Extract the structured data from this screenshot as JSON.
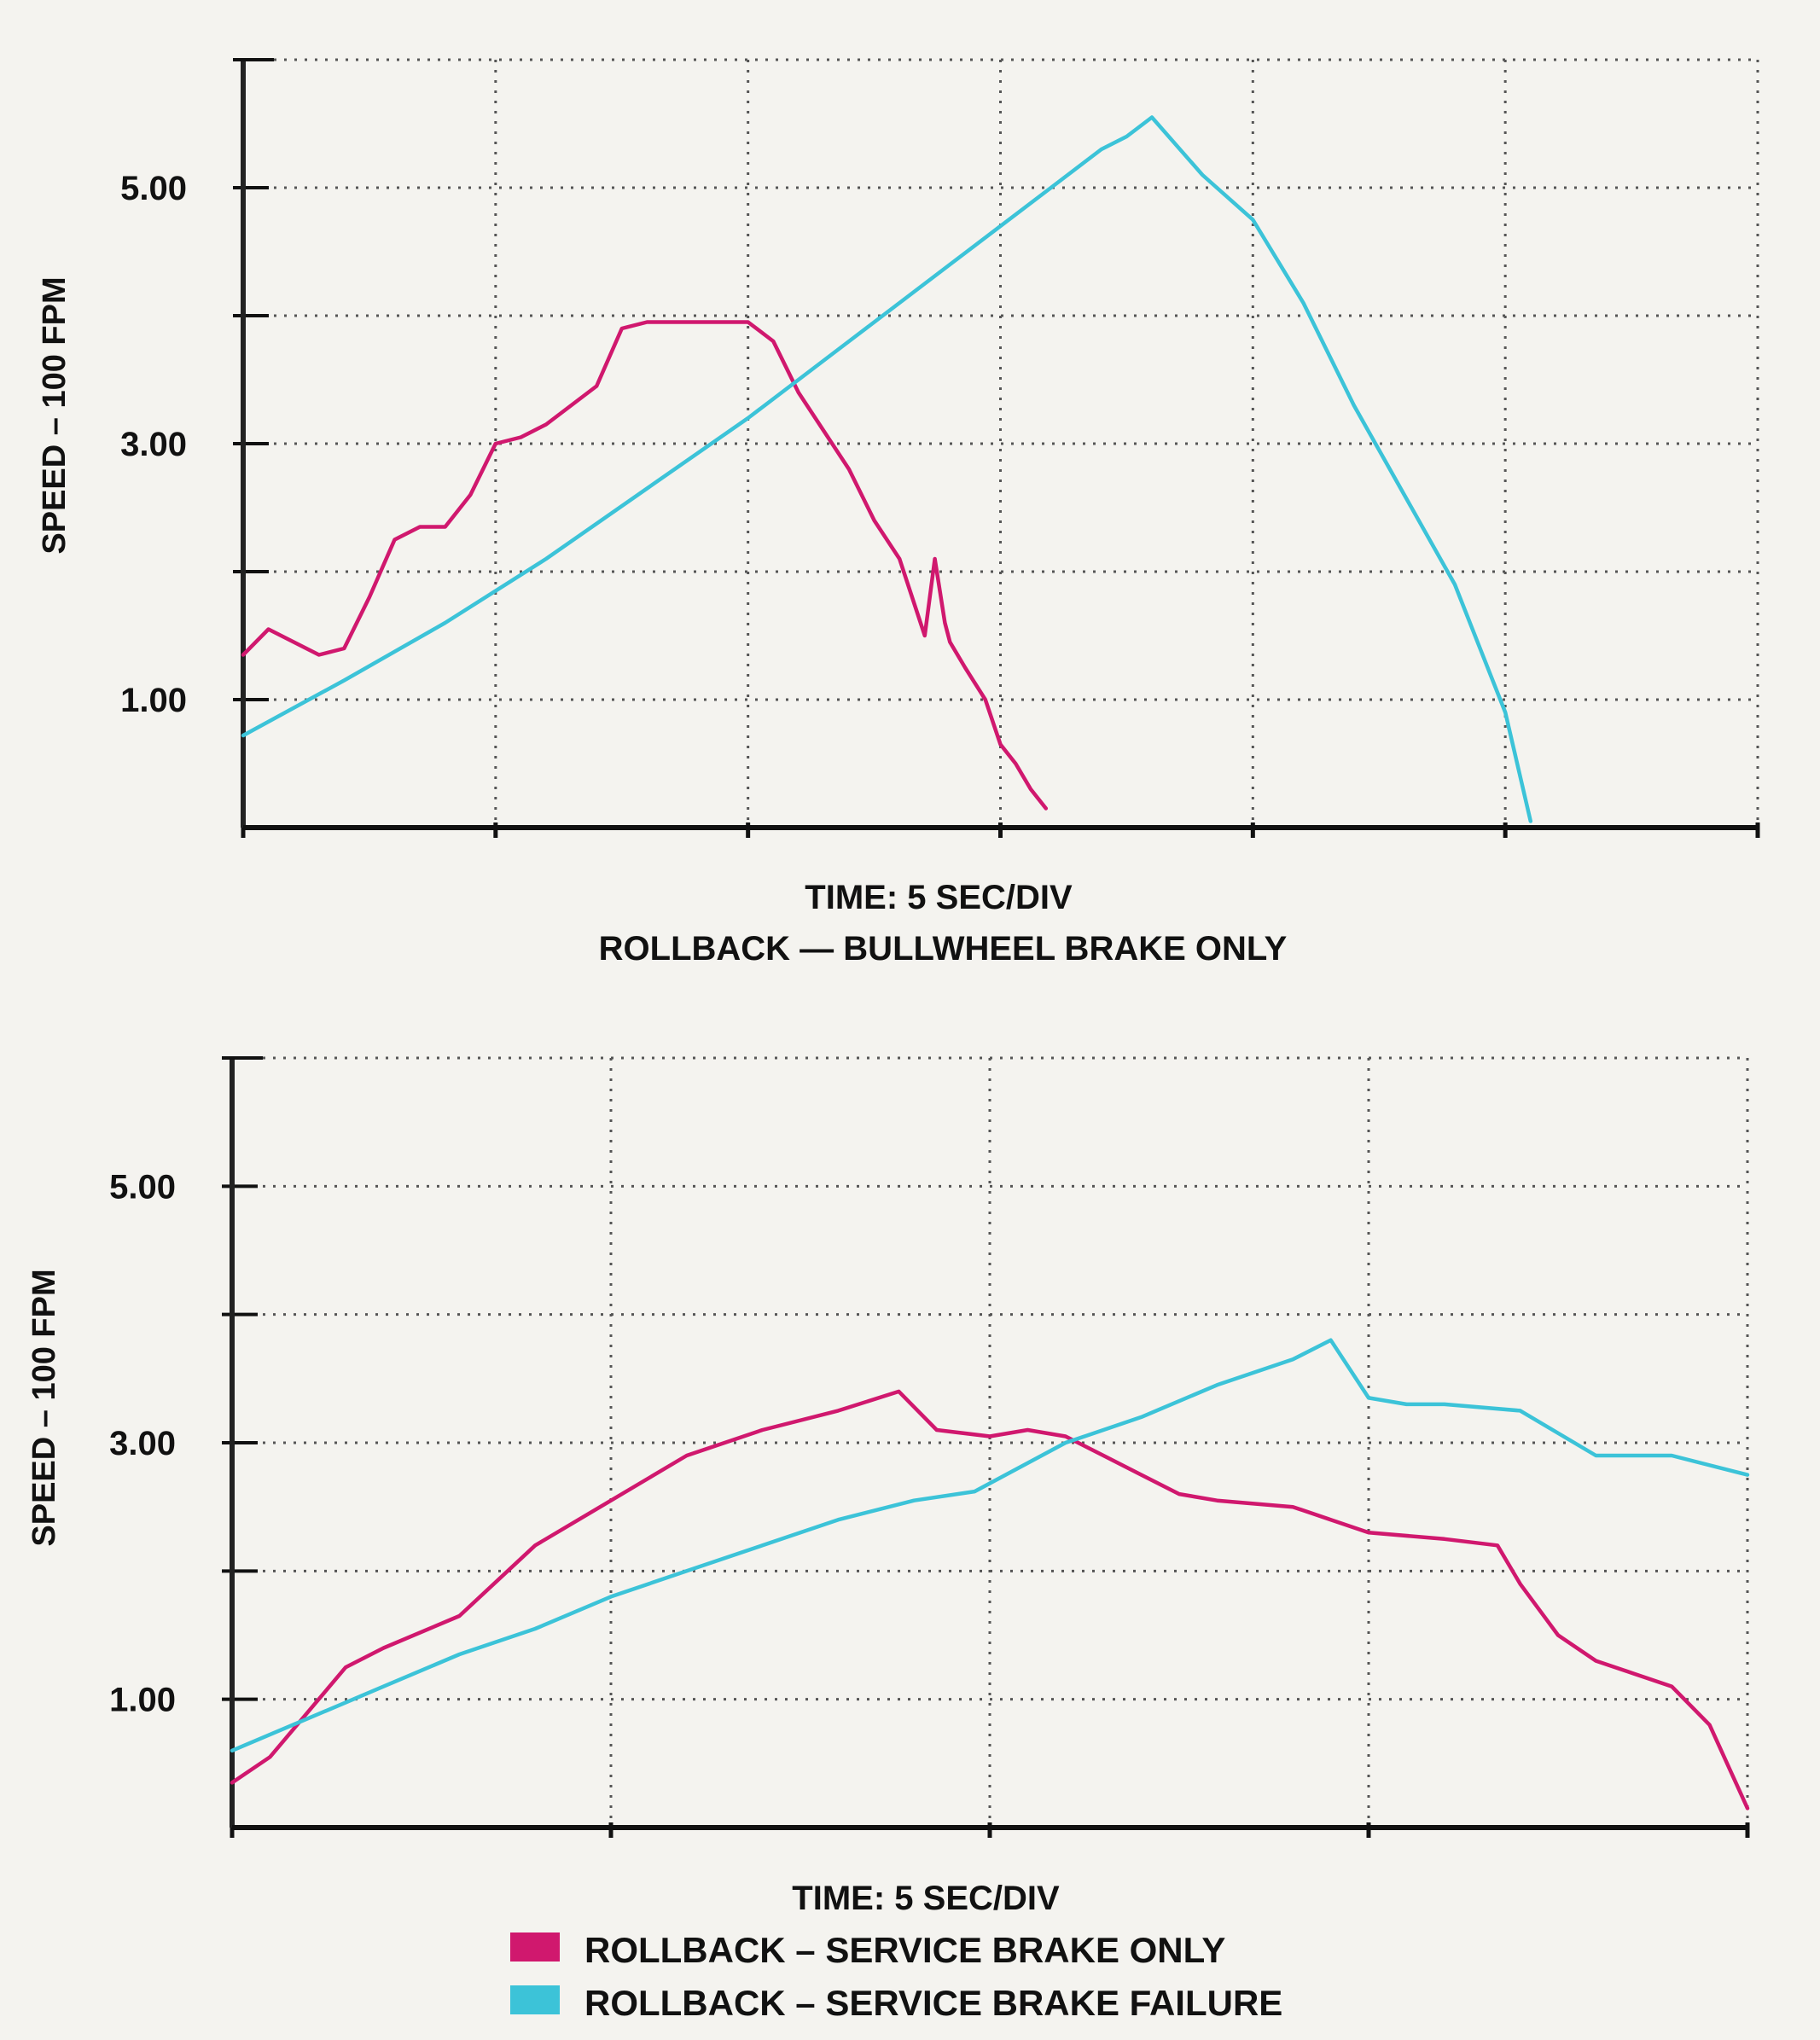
{
  "chart_data": [
    {
      "type": "line",
      "title": "ROLLBACK — BULLWHEEL BRAKE ONLY",
      "xlabel": "TIME: 5 SEC/DIV",
      "ylabel": "SPEED – 100 FPM",
      "xlim": [
        0,
        30
      ],
      "ylim": [
        0,
        6
      ],
      "y_ticks": [
        1,
        2,
        3,
        4,
        5,
        6
      ],
      "y_tick_labels": [
        {
          "value": 1,
          "label": "1.00"
        },
        {
          "value": 3,
          "label": "3.00"
        },
        {
          "value": 5,
          "label": "5.00"
        }
      ],
      "x_ticks": [
        0,
        5,
        10,
        15,
        20,
        25,
        30
      ],
      "grid": "dotted",
      "series": [
        {
          "color": "#d0186e",
          "x": [
            0,
            0.5,
            1.0,
            1.5,
            2.0,
            2.5,
            3.0,
            3.5,
            4.0,
            4.5,
            5.0,
            5.5,
            6.0,
            7.0,
            7.5,
            8.0,
            8.5,
            9.0,
            10.0,
            10.5,
            11.0,
            11.5,
            12.0,
            12.5,
            13.0,
            13.5,
            13.7,
            13.9,
            14.0,
            14.3,
            14.7,
            15.0,
            15.3,
            15.6,
            15.9
          ],
          "values": [
            1.35,
            1.55,
            1.45,
            1.35,
            1.4,
            1.8,
            2.25,
            2.35,
            2.35,
            2.6,
            3.0,
            3.05,
            3.15,
            3.45,
            3.9,
            3.95,
            3.95,
            3.95,
            3.95,
            3.8,
            3.4,
            3.1,
            2.8,
            2.4,
            2.1,
            1.5,
            2.1,
            1.6,
            1.45,
            1.25,
            1.0,
            0.65,
            0.5,
            0.3,
            0.15
          ]
        },
        {
          "color": "#3cc3d8",
          "x": [
            0,
            2,
            4,
            6,
            8,
            10,
            12,
            14,
            16,
            17,
            17.5,
            18,
            19,
            20,
            21,
            22,
            23,
            24,
            25,
            25.5
          ],
          "values": [
            0.72,
            1.15,
            1.6,
            2.1,
            2.65,
            3.2,
            3.8,
            4.4,
            5.0,
            5.3,
            5.4,
            5.55,
            5.1,
            4.75,
            4.1,
            3.3,
            2.6,
            1.9,
            0.9,
            0.05
          ]
        }
      ]
    },
    {
      "type": "line",
      "xlabel": "TIME: 5 SEC/DIV",
      "ylabel": "SPEED – 100 FPM",
      "xlim": [
        0,
        20
      ],
      "ylim": [
        0,
        6
      ],
      "y_ticks": [
        1,
        2,
        3,
        4,
        5,
        6
      ],
      "y_tick_labels": [
        {
          "value": 1,
          "label": "1.00"
        },
        {
          "value": 3,
          "label": "3.00"
        },
        {
          "value": 5,
          "label": "5.00"
        }
      ],
      "x_ticks": [
        0,
        5,
        10,
        15,
        20
      ],
      "grid": "dotted",
      "legend": {
        "position": "bottom"
      },
      "series": [
        {
          "name": "ROLLBACK – SERVICE BRAKE ONLY",
          "color": "#d0186e",
          "x": [
            0,
            0.5,
            1.0,
            1.5,
            2.0,
            3.0,
            4.0,
            5.0,
            6.0,
            7.0,
            8.0,
            8.8,
            9.3,
            10.0,
            10.5,
            11.0,
            11.5,
            12.0,
            12.5,
            13.0,
            14.0,
            14.5,
            15.0,
            16.0,
            16.7,
            17.0,
            17.5,
            18.0,
            18.5,
            19.0,
            19.5,
            20.0
          ],
          "values": [
            0.35,
            0.55,
            0.9,
            1.25,
            1.4,
            1.65,
            2.2,
            2.55,
            2.9,
            3.1,
            3.25,
            3.4,
            3.1,
            3.05,
            3.1,
            3.05,
            2.9,
            2.75,
            2.6,
            2.55,
            2.5,
            2.4,
            2.3,
            2.25,
            2.2,
            1.9,
            1.5,
            1.3,
            1.2,
            1.1,
            0.8,
            0.15
          ]
        },
        {
          "name": "ROLLBACK – SERVICE BRAKE FAILURE",
          "color": "#3cc3d8",
          "x": [
            0,
            1,
            2,
            3,
            4,
            5,
            6,
            7,
            8,
            9,
            9.8,
            11,
            12,
            13,
            14,
            14.5,
            15.0,
            15.5,
            16.0,
            17.0,
            18.0,
            19.0,
            20.0
          ],
          "values": [
            0.6,
            0.85,
            1.1,
            1.35,
            1.55,
            1.8,
            2.0,
            2.2,
            2.4,
            2.55,
            2.62,
            3.0,
            3.2,
            3.45,
            3.65,
            3.8,
            3.35,
            3.3,
            3.3,
            3.25,
            2.9,
            2.9,
            2.75
          ]
        }
      ]
    }
  ],
  "panels": [
    {
      "y_axis_title": "SPEED – 100 FPM",
      "x_caption": "TIME: 5 SEC/DIV",
      "title": "ROLLBACK — BULLWHEEL BRAKE ONLY"
    },
    {
      "y_axis_title": "SPEED – 100 FPM",
      "x_caption": "TIME: 5 SEC/DIV",
      "legend": [
        {
          "label": "ROLLBACK – SERVICE BRAKE ONLY",
          "color": "#d0186e"
        },
        {
          "label": "ROLLBACK – SERVICE BRAKE FAILURE",
          "color": "#3cc3d8"
        }
      ]
    }
  ]
}
